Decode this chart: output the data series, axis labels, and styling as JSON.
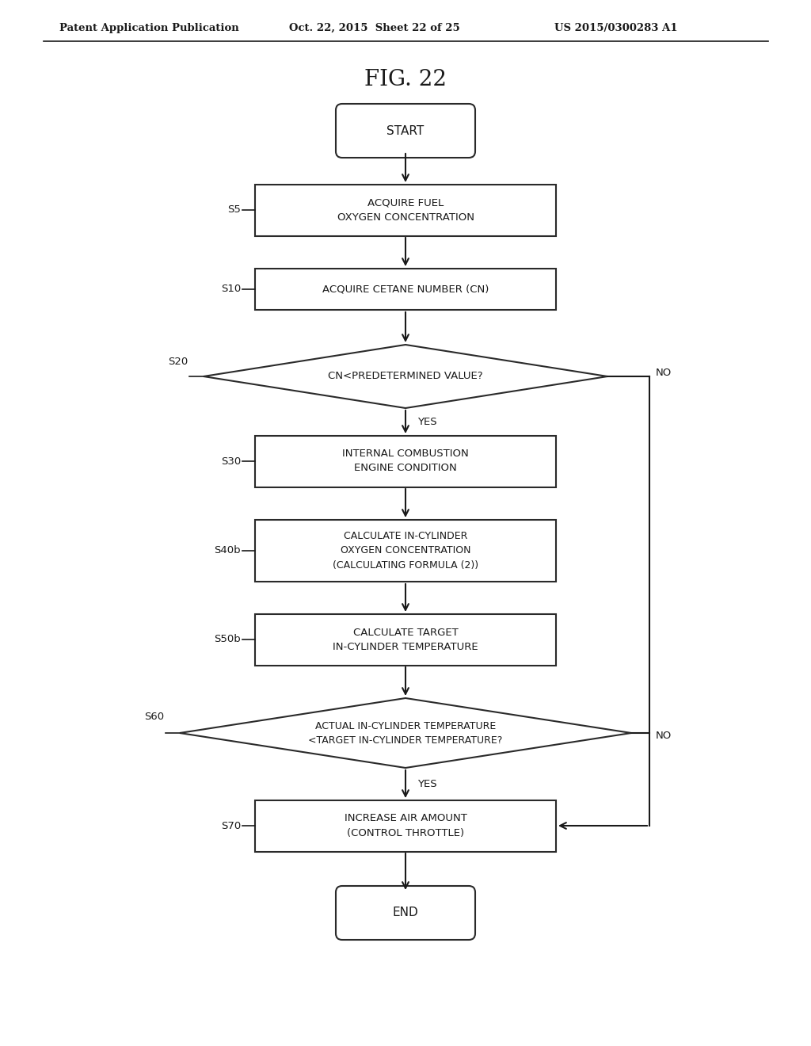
{
  "bg_color": "#ffffff",
  "title": "FIG. 22",
  "header_left": "Patent Application Publication",
  "header_center": "Oct. 22, 2015  Sheet 22 of 25",
  "header_right": "US 2015/0300283 A1",
  "edge_color": "#1a1a1a",
  "box_edge_color": "#2a2a2a",
  "text_color": "#1a1a1a",
  "font_size_label": 9,
  "font_size_step": 9,
  "font_size_title": 20,
  "font_size_header": 9.5
}
